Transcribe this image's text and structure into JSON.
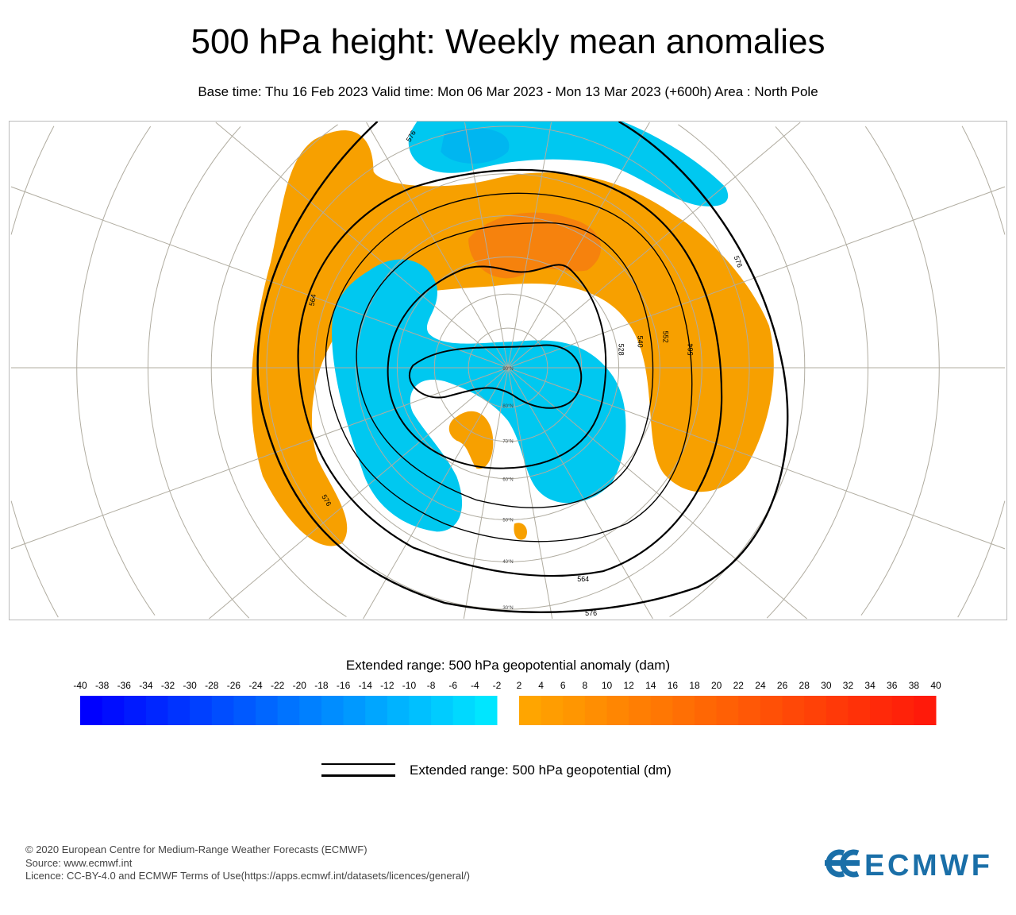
{
  "header": {
    "title": "500 hPa height: Weekly mean anomalies",
    "subtitle": "Base time: Thu 16 Feb 2023 Valid time: Mon 06 Mar 2023 - Mon 13 Mar 2023 (+600h) Area : North Pole"
  },
  "map": {
    "projection": "polar stereographic, North Pole",
    "latitude_labels": [
      "90°N",
      "80°N",
      "70°N",
      "60°N",
      "50°N",
      "40°N",
      "30°N"
    ],
    "contour_labels": [
      "576",
      "564",
      "552",
      "540",
      "528",
      "576",
      "564",
      "576"
    ],
    "colors": {
      "positive_anomaly": "#f7a000",
      "strong_positive": "#f57a10",
      "negative_anomaly": "#00c8f0",
      "strong_negative": "#00aaf0",
      "contour": "#000000",
      "coastline": "#000000",
      "graticule": "#b0aca0"
    }
  },
  "colorbar": {
    "title": "Extended range: 500 hPa geopotential anomaly (dam)",
    "negative_ticks": [
      "-40",
      "-38",
      "-36",
      "-34",
      "-32",
      "-30",
      "-28",
      "-26",
      "-24",
      "-22",
      "-20",
      "-18",
      "-16",
      "-14",
      "-12",
      "-10",
      "-8",
      "-6",
      "-4",
      "-2"
    ],
    "positive_ticks": [
      "2",
      "4",
      "6",
      "8",
      "10",
      "12",
      "14",
      "16",
      "18",
      "20",
      "22",
      "24",
      "26",
      "28",
      "30",
      "32",
      "34",
      "36",
      "38",
      "40"
    ],
    "negative_colors": [
      "#0000ff",
      "#00e6ff"
    ],
    "positive_colors": [
      "#ffa500",
      "#ff1a0a"
    ]
  },
  "legend": {
    "contour_label": "Extended range: 500 hPa geopotential (dm)"
  },
  "footer": {
    "line1": "© 2020 European Centre for Medium-Range Weather Forecasts (ECMWF)",
    "line2": "Source: www.ecmwf.int",
    "line3": "Licence: CC-BY-4.0 and ECMWF Terms of Use(https://apps.ecmwf.int/datasets/licences/general/)",
    "logo_text": "ECMWF",
    "logo_color": "#1a6fa8"
  }
}
